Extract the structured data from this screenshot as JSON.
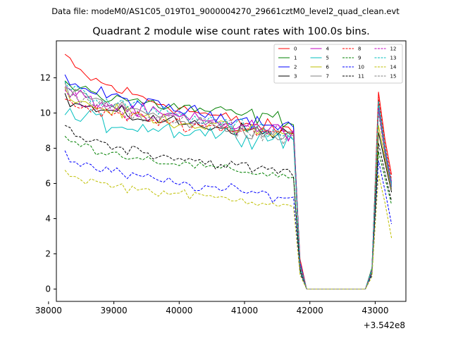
{
  "suptitle": "Data file: modeM0/AS1C05_019T01_9000004270_29661cztM0_level2_quad_clean.evt",
  "chart_data": {
    "type": "line",
    "title": "Quadrant 2 module wise count rates with 100.0s bins.",
    "xlabel": "",
    "ylabel": "",
    "x_offset_label": "+3.542e8",
    "xlim": [
      38120,
      43470
    ],
    "ylim": [
      -0.7,
      14.1
    ],
    "x_ticks": [
      38000,
      39000,
      40000,
      41000,
      42000,
      43000
    ],
    "x_tick_labels": [
      "38000",
      "39000",
      "40000",
      "41000",
      "42000",
      "43000"
    ],
    "y_ticks": [
      0,
      2,
      4,
      6,
      8,
      10,
      12
    ],
    "y_tick_labels": [
      "0",
      "2",
      "4",
      "6",
      "8",
      "10",
      "12"
    ],
    "grid": false,
    "legend_position": "top-right",
    "legend_columns": 4,
    "gap": {
      "start": 41850,
      "end": 42950,
      "value": 0
    },
    "series": [
      {
        "name": "0",
        "color": "#ff0000",
        "dash": "solid",
        "start": 13.3,
        "end": 8.9,
        "sigma": 0.35,
        "tail": [
          1.7,
          0,
          0,
          1.0,
          11.2,
          8.5,
          6.5
        ]
      },
      {
        "name": "1",
        "color": "#008000",
        "dash": "solid",
        "start": 11.9,
        "end": 9.6,
        "sigma": 0.35,
        "tail": [
          1.4,
          0,
          0,
          1.2,
          10.5,
          8.0,
          6.0
        ]
      },
      {
        "name": "2",
        "color": "#0000ff",
        "dash": "solid",
        "start": 12.1,
        "end": 9.3,
        "sigma": 0.3,
        "tail": [
          1.5,
          0,
          0,
          1.1,
          10.2,
          7.8,
          5.8
        ]
      },
      {
        "name": "3",
        "color": "#000000",
        "dash": "solid",
        "start": 10.9,
        "end": 8.8,
        "sigma": 0.3,
        "tail": [
          1.3,
          0,
          0,
          1.0,
          8.9,
          7.2,
          5.5
        ]
      },
      {
        "name": "4",
        "color": "#bf00bf",
        "dash": "solid",
        "start": 11.5,
        "end": 8.9,
        "sigma": 0.35,
        "tail": [
          1.4,
          0,
          0,
          1.1,
          10.5,
          8.0,
          6.1
        ]
      },
      {
        "name": "5",
        "color": "#00bfbf",
        "dash": "solid",
        "start": 10.0,
        "end": 8.6,
        "sigma": 0.45,
        "tail": [
          1.2,
          0,
          0,
          1.0,
          10.6,
          7.9,
          5.9
        ]
      },
      {
        "name": "6",
        "color": "#bfbf00",
        "dash": "solid",
        "start": 11.2,
        "end": 8.7,
        "sigma": 0.3,
        "tail": [
          1.3,
          0,
          0,
          1.0,
          9.3,
          7.4,
          5.6
        ]
      },
      {
        "name": "7",
        "color": "#808080",
        "dash": "solid",
        "start": 11.8,
        "end": 8.6,
        "sigma": 0.35,
        "tail": [
          1.3,
          0,
          0,
          1.0,
          10.3,
          7.7,
          5.7
        ]
      },
      {
        "name": "8",
        "color": "#ff0000",
        "dash": "dashed",
        "start": 10.8,
        "end": 8.8,
        "sigma": 0.3,
        "tail": [
          1.3,
          0,
          0,
          1.0,
          10.9,
          8.2,
          6.2
        ]
      },
      {
        "name": "9",
        "color": "#008000",
        "dash": "dashed",
        "start": 8.7,
        "end": 6.4,
        "sigma": 0.2,
        "tail": [
          1.0,
          0,
          0,
          0.9,
          7.8,
          6.3,
          4.8
        ]
      },
      {
        "name": "10",
        "color": "#0000ff",
        "dash": "dashed",
        "start": 7.7,
        "end": 5.2,
        "sigma": 0.25,
        "tail": [
          0.9,
          0,
          0,
          0.8,
          7.3,
          5.6,
          3.7
        ]
      },
      {
        "name": "11",
        "color": "#000000",
        "dash": "dashed",
        "start": 9.3,
        "end": 6.6,
        "sigma": 0.25,
        "tail": [
          1.1,
          0,
          0,
          0.9,
          8.3,
          6.6,
          5.0
        ]
      },
      {
        "name": "12",
        "color": "#bf00bf",
        "dash": "dashed",
        "start": 11.2,
        "end": 8.9,
        "sigma": 0.35,
        "tail": [
          1.3,
          0,
          0,
          1.0,
          10.3,
          7.8,
          5.9
        ]
      },
      {
        "name": "13",
        "color": "#00bfbf",
        "dash": "dashed",
        "start": 12.0,
        "end": 8.8,
        "sigma": 0.35,
        "tail": [
          1.4,
          0,
          0,
          1.1,
          10.7,
          8.1,
          6.0
        ]
      },
      {
        "name": "14",
        "color": "#bfbf00",
        "dash": "dashed",
        "start": 6.7,
        "end": 4.8,
        "sigma": 0.2,
        "tail": [
          0.8,
          0,
          0,
          0.7,
          6.5,
          4.9,
          2.9
        ]
      },
      {
        "name": "15",
        "color": "#808080",
        "dash": "dashed",
        "start": 11.4,
        "end": 8.7,
        "sigma": 0.35,
        "tail": [
          1.3,
          0,
          0,
          1.0,
          10.0,
          7.6,
          5.6
        ]
      }
    ]
  }
}
